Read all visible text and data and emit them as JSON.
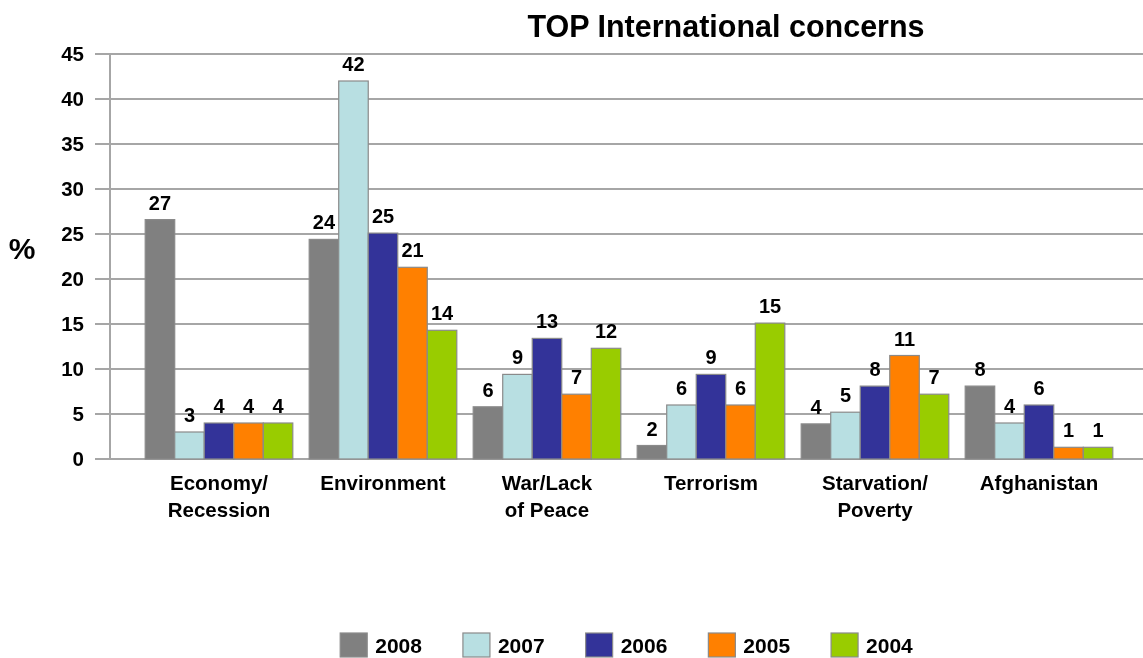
{
  "chart_data": {
    "type": "bar",
    "title": "TOP International concerns",
    "ylabel": "%",
    "categories": [
      "Economy/ Recession",
      "Environment",
      "War/Lack of Peace",
      "Terrorism",
      "Starvation/ Poverty",
      "Afghanistan"
    ],
    "series": [
      {
        "name": "2008",
        "color": "#808080",
        "values": [
          26.6,
          24.4,
          5.8,
          1.5,
          3.9,
          8.1
        ],
        "value_labels": [
          "27",
          "24",
          "6",
          "2",
          "4",
          "8"
        ]
      },
      {
        "name": "2007",
        "color": "#b8dfe2",
        "values": [
          3.0,
          42.0,
          9.4,
          6.0,
          5.2,
          4.0
        ],
        "value_labels": [
          "3",
          "42",
          "9",
          "6",
          "5",
          "4"
        ]
      },
      {
        "name": "2006",
        "color": "#333399",
        "values": [
          4.0,
          25.1,
          13.4,
          9.4,
          8.1,
          6.0
        ],
        "value_labels": [
          "4",
          "25",
          "13",
          "9",
          "8",
          "6"
        ]
      },
      {
        "name": "2005",
        "color": "#ff8000",
        "values": [
          4.0,
          21.3,
          7.2,
          6.0,
          11.5,
          1.3
        ],
        "value_labels": [
          "4",
          "21",
          "7",
          "6",
          "11",
          "1"
        ]
      },
      {
        "name": "2004",
        "color": "#99cc00",
        "values": [
          4.0,
          14.3,
          12.3,
          15.1,
          7.2,
          1.3
        ],
        "value_labels": [
          "4",
          "14",
          "12",
          "15",
          "7",
          "1"
        ]
      }
    ],
    "ylim": [
      0,
      45
    ],
    "yticks": [
      0,
      5,
      10,
      15,
      20,
      25,
      30,
      35,
      40,
      45
    ],
    "grid": "y",
    "legend": "bottom"
  }
}
